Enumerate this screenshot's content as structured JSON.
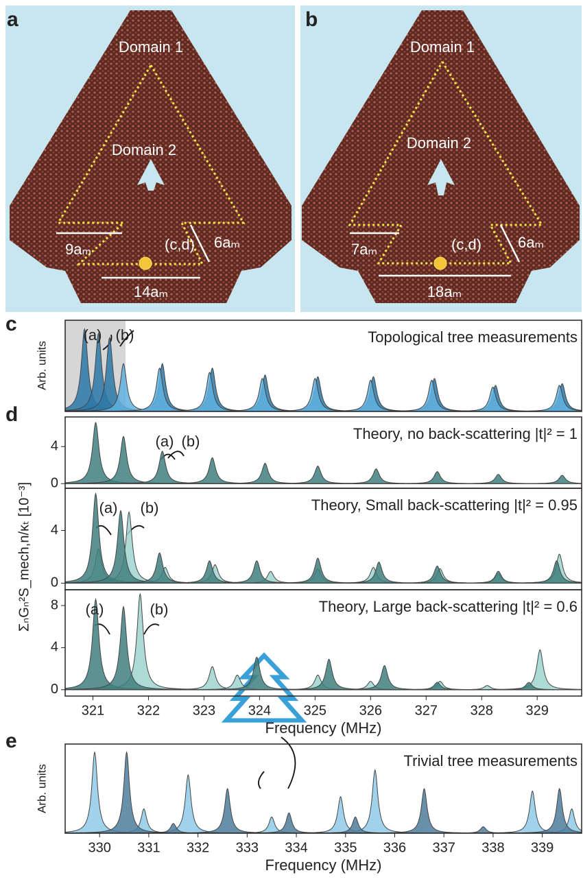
{
  "panel_labels": [
    "a",
    "b",
    "c",
    "d",
    "e"
  ],
  "panels": [
    {
      "texts": [
        "Domain 1",
        "Domain 2",
        "9aₘ",
        "(c,d)",
        "6aₘ",
        "14aₘ"
      ]
    },
    {
      "texts": [
        "Domain 1",
        "Domain 2",
        "7aₘ",
        "(c,d)",
        "6aₘ",
        "18aₘ"
      ]
    }
  ],
  "chart_data": [
    {
      "type": "area",
      "title": "Topological tree measurements",
      "ylabel": "Arb. units",
      "annotations": [
        "(a)",
        "(b)"
      ],
      "xlim": [
        320.5,
        329.8
      ],
      "ylim": [
        0,
        1.05
      ],
      "series": [
        {
          "color": "#2c78a8",
          "x": [
            320.85,
            321.1,
            321.3,
            322.25,
            323.15,
            324.1,
            325.05,
            326.05,
            327.15,
            328.25,
            329.45
          ],
          "values": [
            0.95,
            0.9,
            0.85,
            0.55,
            0.5,
            0.42,
            0.4,
            0.4,
            0.38,
            0.3,
            0.32
          ]
        },
        {
          "color": "#5fb0de",
          "x": [
            321.55,
            322.2,
            323.1,
            324.05,
            325.0,
            326.0,
            327.1,
            328.2,
            329.4
          ],
          "values": [
            0.55,
            0.5,
            0.45,
            0.38,
            0.38,
            0.36,
            0.36,
            0.28,
            0.3
          ]
        }
      ]
    },
    {
      "type": "area",
      "title": "Theory, no back-scattering |t|² = 1",
      "annotations": [
        "(a)",
        "(b)"
      ],
      "xlim": [
        320.5,
        329.8
      ],
      "ylim": [
        -0.5,
        7.2
      ],
      "yticks": [
        0,
        4
      ],
      "series": [
        {
          "color": "#3f7f7e",
          "x": [
            321.05,
            321.55,
            322.25,
            323.15,
            324.1,
            325.05,
            326.1,
            327.2,
            328.3,
            329.45
          ],
          "values": [
            6.6,
            5.1,
            3.5,
            2.8,
            2.2,
            1.9,
            1.6,
            1.3,
            1.0,
            0.9
          ]
        }
      ]
    },
    {
      "type": "area",
      "title": "Theory, Small back-scattering |t|² = 0.95",
      "ylabel": "ΣₙGₙ²S_mech,n/κₜ [10⁻³]",
      "annotations": [
        "(a)",
        "(b)"
      ],
      "xlim": [
        320.5,
        329.8
      ],
      "ylim": [
        -0.5,
        7.2
      ],
      "yticks": [
        0,
        4
      ],
      "series": [
        {
          "color": "#9fd3cf",
          "x": [
            321.1,
            321.65,
            322.3,
            323.2,
            324.2,
            325.05,
            326.05,
            327.25,
            328.3,
            329.4
          ],
          "values": [
            2.6,
            5.4,
            1.2,
            1.4,
            0.9,
            1.1,
            1.2,
            1.1,
            0.7,
            2.2
          ]
        },
        {
          "color": "#3f7f7e",
          "x": [
            321.05,
            321.5,
            322.2,
            323.1,
            323.95,
            325.05,
            326.15,
            327.2,
            328.3,
            329.35
          ],
          "values": [
            6.8,
            5.5,
            2.3,
            1.7,
            1.7,
            1.9,
            1.6,
            1.3,
            0.9,
            1.7
          ]
        }
      ]
    },
    {
      "type": "area",
      "title": "Theory, Large back-scattering |t|² = 0.6",
      "annotations": [
        "(a)",
        "(b)"
      ],
      "xlabel": "Frequency (MHz)",
      "xlim": [
        320.5,
        329.8
      ],
      "ylim": [
        -0.6,
        9.5
      ],
      "yticks": [
        0,
        4,
        8
      ],
      "xticks": [
        321,
        322,
        323,
        324,
        325,
        326,
        327,
        328,
        329
      ],
      "series": [
        {
          "color": "#9fd3cf",
          "x": [
            321.85,
            323.15,
            323.6,
            325.05,
            326.0,
            327.25,
            328.1,
            329.05
          ],
          "values": [
            9.1,
            2.2,
            1.4,
            1.4,
            0.8,
            0.8,
            0.4,
            3.8
          ]
        },
        {
          "color": "#3f7f7e",
          "x": [
            321.05,
            321.55,
            323.95,
            325.25,
            326.25,
            327.2,
            328.85
          ],
          "values": [
            8.6,
            7.9,
            3.1,
            2.9,
            2.3,
            0.7,
            0.7
          ]
        }
      ]
    },
    {
      "type": "area",
      "title": "Trivial tree measurements",
      "ylabel": "Arb. units",
      "xlabel": "Frequency (MHz)",
      "xlim": [
        329.3,
        339.8
      ],
      "ylim": [
        0,
        1.1
      ],
      "xticks": [
        330,
        331,
        332,
        333,
        334,
        335,
        336,
        337,
        338,
        339
      ],
      "series": [
        {
          "color": "#8fcbe8",
          "x": [
            329.9,
            330.9,
            331.8,
            333.5,
            334.9,
            335.6,
            338.8,
            339.6
          ],
          "values": [
            1.0,
            0.3,
            0.72,
            0.2,
            0.45,
            0.78,
            0.52,
            0.3
          ]
        },
        {
          "color": "#4f7c9c",
          "x": [
            330.55,
            331.5,
            332.6,
            333.85,
            335.2,
            336.6,
            337.8,
            339.35
          ],
          "values": [
            1.0,
            0.12,
            0.55,
            0.25,
            0.2,
            0.55,
            0.08,
            0.55
          ]
        }
      ]
    }
  ]
}
